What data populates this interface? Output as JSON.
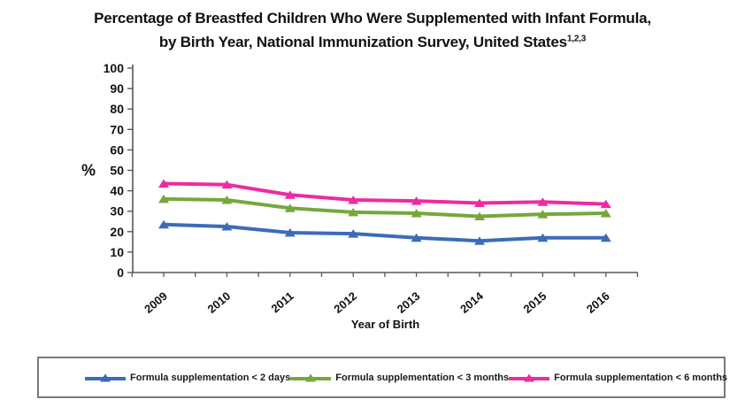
{
  "title": {
    "line1": "Percentage of Breastfed Children Who Were Supplemented with Infant Formula,",
    "line2": "by Birth Year, National Immunization Survey, United States",
    "superscript": "1,2,3"
  },
  "chart_data": {
    "type": "line",
    "title": "Percentage of Breastfed Children Who Were Supplemented with Infant Formula, by Birth Year, National Immunization Survey, United States",
    "xlabel": "Year of Birth",
    "ylabel": "%",
    "ylim": [
      0,
      100
    ],
    "ytick_step": 10,
    "grid": false,
    "marker": "triangle-up",
    "legend_position": "bottom-boxed",
    "categories": [
      "2009",
      "2010",
      "2011",
      "2012",
      "2013",
      "2014",
      "2015",
      "2016"
    ],
    "series": [
      {
        "name": "Formula supplementation < 2 days",
        "color": "#3b6cb8",
        "values": [
          23.5,
          22.5,
          19.5,
          19.0,
          17.0,
          15.5,
          17.0,
          17.0
        ]
      },
      {
        "name": "Formula supplementation < 3 months",
        "color": "#76a73c",
        "values": [
          36.0,
          35.5,
          31.5,
          29.5,
          29.0,
          27.5,
          28.5,
          29.0
        ]
      },
      {
        "name": "Formula supplementation < 6 months",
        "color": "#ee2b9e",
        "values": [
          43.5,
          43.0,
          38.0,
          35.5,
          35.0,
          34.0,
          34.5,
          33.5
        ]
      }
    ],
    "axis_color": "#595959",
    "tick_label_color": "#111111"
  }
}
